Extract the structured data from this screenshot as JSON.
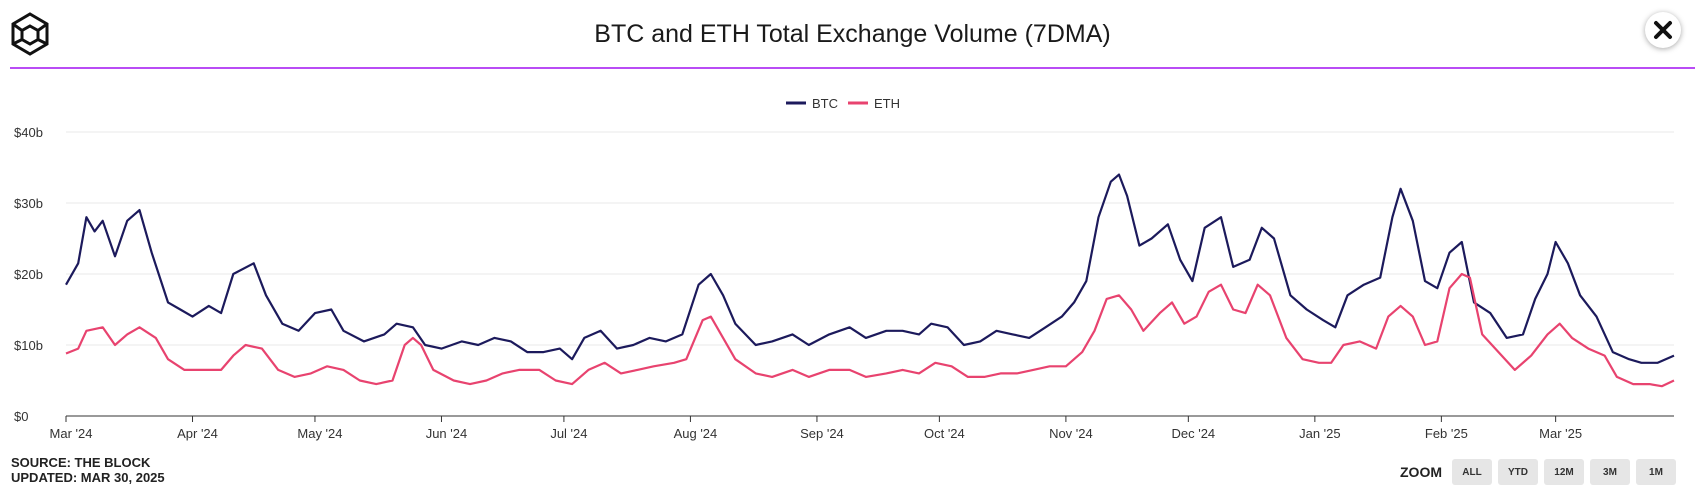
{
  "header": {
    "title": "BTC and ETH Total Exchange Volume (7DMA)",
    "close_label": "×"
  },
  "footer": {
    "source": "SOURCE: THE BLOCK",
    "updated": "UPDATED: MAR 30, 2025",
    "zoom_label": "ZOOM",
    "zoom_options": [
      "ALL",
      "YTD",
      "12M",
      "3M",
      "1M"
    ]
  },
  "chart_data": {
    "type": "line",
    "title": "BTC and ETH Total Exchange Volume (7DMA)",
    "xlabel": "",
    "ylabel": "",
    "ylim": [
      0,
      40
    ],
    "yticks": [
      0,
      10,
      20,
      30,
      40
    ],
    "ytick_labels": [
      "$0",
      "$10b",
      "$20b",
      "$30b",
      "$40b"
    ],
    "xlim": [
      "2024-03-01",
      "2025-03-30"
    ],
    "xticks": [
      "2024-03-01",
      "2024-04-01",
      "2024-05-01",
      "2024-06-01",
      "2024-07-01",
      "2024-08-01",
      "2024-09-01",
      "2024-10-01",
      "2024-11-01",
      "2024-12-01",
      "2025-01-01",
      "2025-02-01",
      "2025-03-01"
    ],
    "xtick_labels": [
      "Mar '24",
      "Apr '24",
      "May '24",
      "Jun '24",
      "Jul '24",
      "Aug '24",
      "Sep '24",
      "Oct '24",
      "Nov '24",
      "Dec '24",
      "Jan '25",
      "Feb '25",
      "Mar '25"
    ],
    "grid": true,
    "legend": "top-center",
    "series": [
      {
        "name": "BTC",
        "color": "#1c1a5c",
        "points": [
          [
            "2024-03-01",
            18.5
          ],
          [
            "2024-03-04",
            21.5
          ],
          [
            "2024-03-06",
            28
          ],
          [
            "2024-03-08",
            26
          ],
          [
            "2024-03-10",
            27.5
          ],
          [
            "2024-03-13",
            22.5
          ],
          [
            "2024-03-16",
            27.5
          ],
          [
            "2024-03-19",
            29
          ],
          [
            "2024-03-22",
            23
          ],
          [
            "2024-03-26",
            16
          ],
          [
            "2024-03-29",
            15
          ],
          [
            "2024-04-01",
            14
          ],
          [
            "2024-04-05",
            15.5
          ],
          [
            "2024-04-08",
            14.5
          ],
          [
            "2024-04-11",
            20
          ],
          [
            "2024-04-16",
            21.5
          ],
          [
            "2024-04-19",
            17
          ],
          [
            "2024-04-23",
            13
          ],
          [
            "2024-04-27",
            12
          ],
          [
            "2024-05-01",
            14.5
          ],
          [
            "2024-05-05",
            15
          ],
          [
            "2024-05-08",
            12
          ],
          [
            "2024-05-13",
            10.5
          ],
          [
            "2024-05-18",
            11.5
          ],
          [
            "2024-05-21",
            13
          ],
          [
            "2024-05-25",
            12.5
          ],
          [
            "2024-05-28",
            10
          ],
          [
            "2024-06-01",
            9.5
          ],
          [
            "2024-06-06",
            10.5
          ],
          [
            "2024-06-10",
            10
          ],
          [
            "2024-06-14",
            11
          ],
          [
            "2024-06-18",
            10.5
          ],
          [
            "2024-06-22",
            9
          ],
          [
            "2024-06-26",
            9
          ],
          [
            "2024-06-30",
            9.5
          ],
          [
            "2024-07-03",
            8
          ],
          [
            "2024-07-06",
            11
          ],
          [
            "2024-07-10",
            12
          ],
          [
            "2024-07-14",
            9.5
          ],
          [
            "2024-07-18",
            10
          ],
          [
            "2024-07-22",
            11
          ],
          [
            "2024-07-26",
            10.5
          ],
          [
            "2024-07-30",
            11.5
          ],
          [
            "2024-08-03",
            18.5
          ],
          [
            "2024-08-06",
            20
          ],
          [
            "2024-08-09",
            17
          ],
          [
            "2024-08-12",
            13
          ],
          [
            "2024-08-17",
            10
          ],
          [
            "2024-08-21",
            10.5
          ],
          [
            "2024-08-26",
            11.5
          ],
          [
            "2024-08-30",
            10
          ],
          [
            "2024-09-04",
            11.5
          ],
          [
            "2024-09-09",
            12.5
          ],
          [
            "2024-09-13",
            11
          ],
          [
            "2024-09-18",
            12
          ],
          [
            "2024-09-22",
            12
          ],
          [
            "2024-09-26",
            11.5
          ],
          [
            "2024-09-29",
            13
          ],
          [
            "2024-10-03",
            12.5
          ],
          [
            "2024-10-07",
            10
          ],
          [
            "2024-10-11",
            10.5
          ],
          [
            "2024-10-15",
            12
          ],
          [
            "2024-10-19",
            11.5
          ],
          [
            "2024-10-23",
            11
          ],
          [
            "2024-10-27",
            12.5
          ],
          [
            "2024-10-31",
            14
          ],
          [
            "2024-11-03",
            16
          ],
          [
            "2024-11-06",
            19
          ],
          [
            "2024-11-09",
            28
          ],
          [
            "2024-11-12",
            33
          ],
          [
            "2024-11-14",
            34
          ],
          [
            "2024-11-16",
            31
          ],
          [
            "2024-11-19",
            24
          ],
          [
            "2024-11-22",
            25
          ],
          [
            "2024-11-26",
            27
          ],
          [
            "2024-11-29",
            22
          ],
          [
            "2024-12-02",
            19
          ],
          [
            "2024-12-05",
            26.5
          ],
          [
            "2024-12-09",
            28
          ],
          [
            "2024-12-12",
            21
          ],
          [
            "2024-12-16",
            22
          ],
          [
            "2024-12-19",
            26.5
          ],
          [
            "2024-12-22",
            25
          ],
          [
            "2024-12-26",
            17
          ],
          [
            "2024-12-30",
            15
          ],
          [
            "2025-01-03",
            13.5
          ],
          [
            "2025-01-06",
            12.5
          ],
          [
            "2025-01-09",
            17
          ],
          [
            "2025-01-13",
            18.5
          ],
          [
            "2025-01-17",
            19.5
          ],
          [
            "2025-01-20",
            28
          ],
          [
            "2025-01-22",
            32
          ],
          [
            "2025-01-25",
            27.5
          ],
          [
            "2025-01-28",
            19
          ],
          [
            "2025-01-31",
            18
          ],
          [
            "2025-02-03",
            23
          ],
          [
            "2025-02-06",
            24.5
          ],
          [
            "2025-02-09",
            16
          ],
          [
            "2025-02-13",
            14.5
          ],
          [
            "2025-02-17",
            11
          ],
          [
            "2025-02-21",
            11.5
          ],
          [
            "2025-02-24",
            16.5
          ],
          [
            "2025-02-27",
            20
          ],
          [
            "2025-03-01",
            24.5
          ],
          [
            "2025-03-04",
            21.5
          ],
          [
            "2025-03-07",
            17
          ],
          [
            "2025-03-11",
            14
          ],
          [
            "2025-03-15",
            9
          ],
          [
            "2025-03-19",
            8
          ],
          [
            "2025-03-22",
            7.5
          ],
          [
            "2025-03-26",
            7.5
          ],
          [
            "2025-03-30",
            8.5
          ]
        ]
      },
      {
        "name": "ETH",
        "color": "#e8436f",
        "points": [
          [
            "2024-03-01",
            8.8
          ],
          [
            "2024-03-04",
            9.5
          ],
          [
            "2024-03-06",
            12
          ],
          [
            "2024-03-10",
            12.5
          ],
          [
            "2024-03-13",
            10
          ],
          [
            "2024-03-16",
            11.5
          ],
          [
            "2024-03-19",
            12.5
          ],
          [
            "2024-03-23",
            11
          ],
          [
            "2024-03-26",
            8
          ],
          [
            "2024-03-30",
            6.5
          ],
          [
            "2024-04-04",
            6.5
          ],
          [
            "2024-04-08",
            6.5
          ],
          [
            "2024-04-11",
            8.5
          ],
          [
            "2024-04-14",
            10
          ],
          [
            "2024-04-18",
            9.5
          ],
          [
            "2024-04-22",
            6.5
          ],
          [
            "2024-04-26",
            5.5
          ],
          [
            "2024-04-30",
            6
          ],
          [
            "2024-05-04",
            7
          ],
          [
            "2024-05-08",
            6.5
          ],
          [
            "2024-05-12",
            5
          ],
          [
            "2024-05-16",
            4.5
          ],
          [
            "2024-05-20",
            5
          ],
          [
            "2024-05-23",
            10
          ],
          [
            "2024-05-25",
            11
          ],
          [
            "2024-05-27",
            10
          ],
          [
            "2024-05-30",
            6.5
          ],
          [
            "2024-06-04",
            5
          ],
          [
            "2024-06-08",
            4.5
          ],
          [
            "2024-06-12",
            5
          ],
          [
            "2024-06-16",
            6
          ],
          [
            "2024-06-20",
            6.5
          ],
          [
            "2024-06-25",
            6.5
          ],
          [
            "2024-06-29",
            5
          ],
          [
            "2024-07-03",
            4.5
          ],
          [
            "2024-07-07",
            6.5
          ],
          [
            "2024-07-11",
            7.5
          ],
          [
            "2024-07-15",
            6
          ],
          [
            "2024-07-19",
            6.5
          ],
          [
            "2024-07-23",
            7
          ],
          [
            "2024-07-28",
            7.5
          ],
          [
            "2024-07-31",
            8
          ],
          [
            "2024-08-04",
            13.5
          ],
          [
            "2024-08-06",
            14
          ],
          [
            "2024-08-09",
            11
          ],
          [
            "2024-08-12",
            8
          ],
          [
            "2024-08-17",
            6
          ],
          [
            "2024-08-21",
            5.5
          ],
          [
            "2024-08-26",
            6.5
          ],
          [
            "2024-08-30",
            5.5
          ],
          [
            "2024-09-04",
            6.5
          ],
          [
            "2024-09-09",
            6.5
          ],
          [
            "2024-09-13",
            5.5
          ],
          [
            "2024-09-18",
            6
          ],
          [
            "2024-09-22",
            6.5
          ],
          [
            "2024-09-26",
            6
          ],
          [
            "2024-09-30",
            7.5
          ],
          [
            "2024-10-04",
            7
          ],
          [
            "2024-10-08",
            5.5
          ],
          [
            "2024-10-12",
            5.5
          ],
          [
            "2024-10-16",
            6
          ],
          [
            "2024-10-20",
            6
          ],
          [
            "2024-10-24",
            6.5
          ],
          [
            "2024-10-28",
            7
          ],
          [
            "2024-11-01",
            7
          ],
          [
            "2024-11-05",
            9
          ],
          [
            "2024-11-08",
            12
          ],
          [
            "2024-11-11",
            16.5
          ],
          [
            "2024-11-14",
            17
          ],
          [
            "2024-11-17",
            15
          ],
          [
            "2024-11-20",
            12
          ],
          [
            "2024-11-24",
            14.5
          ],
          [
            "2024-11-27",
            16
          ],
          [
            "2024-11-30",
            13
          ],
          [
            "2024-12-03",
            14
          ],
          [
            "2024-12-06",
            17.5
          ],
          [
            "2024-12-09",
            18.5
          ],
          [
            "2024-12-12",
            15
          ],
          [
            "2024-12-15",
            14.5
          ],
          [
            "2024-12-18",
            18.5
          ],
          [
            "2024-12-21",
            17
          ],
          [
            "2024-12-25",
            11
          ],
          [
            "2024-12-29",
            8
          ],
          [
            "2025-01-02",
            7.5
          ],
          [
            "2025-01-05",
            7.5
          ],
          [
            "2025-01-08",
            10
          ],
          [
            "2025-01-12",
            10.5
          ],
          [
            "2025-01-16",
            9.5
          ],
          [
            "2025-01-19",
            14
          ],
          [
            "2025-01-22",
            15.5
          ],
          [
            "2025-01-25",
            14
          ],
          [
            "2025-01-28",
            10
          ],
          [
            "2025-01-31",
            10.5
          ],
          [
            "2025-02-03",
            18
          ],
          [
            "2025-02-06",
            20
          ],
          [
            "2025-02-08",
            19.5
          ],
          [
            "2025-02-11",
            11.5
          ],
          [
            "2025-02-15",
            9
          ],
          [
            "2025-02-19",
            6.5
          ],
          [
            "2025-02-23",
            8.5
          ],
          [
            "2025-02-27",
            11.5
          ],
          [
            "2025-03-02",
            13
          ],
          [
            "2025-03-05",
            11
          ],
          [
            "2025-03-09",
            9.5
          ],
          [
            "2025-03-13",
            8.5
          ],
          [
            "2025-03-16",
            5.5
          ],
          [
            "2025-03-20",
            4.5
          ],
          [
            "2025-03-24",
            4.5
          ],
          [
            "2025-03-27",
            4.2
          ],
          [
            "2025-03-30",
            5
          ]
        ]
      }
    ]
  }
}
